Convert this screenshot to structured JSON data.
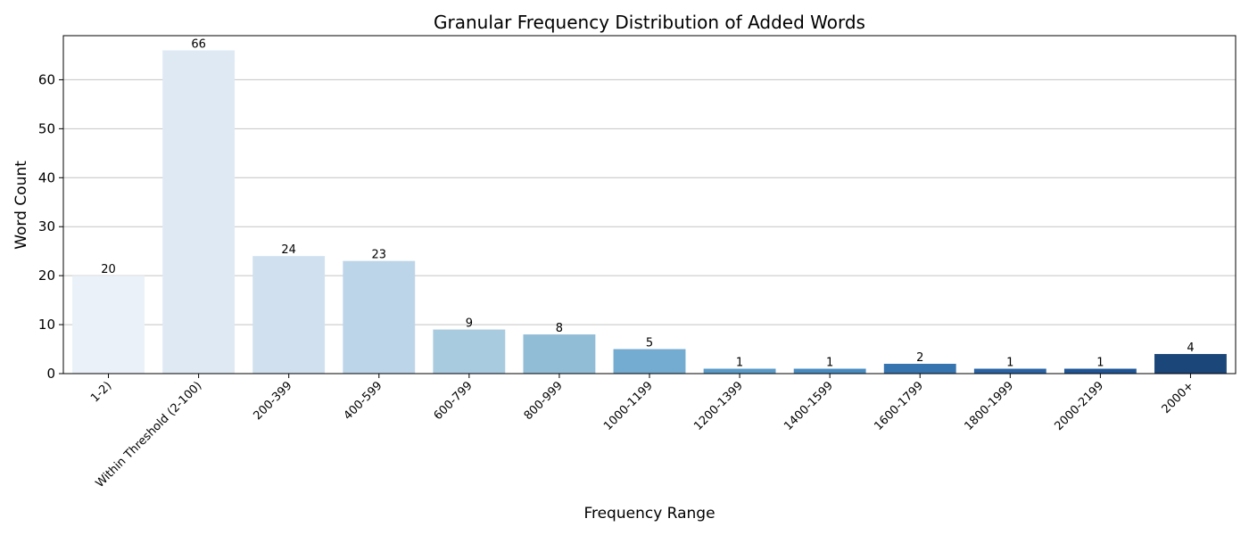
{
  "chart_data": {
    "type": "bar",
    "title": "Granular Frequency Distribution of Added Words",
    "xlabel": "Frequency Range",
    "ylabel": "Word Count",
    "categories": [
      "1-2)",
      "Within Threshold (2-100)",
      "200-399",
      "400-599",
      "600-799",
      "800-999",
      "1000-1199",
      "1200-1399",
      "1400-1599",
      "1600-1799",
      "1800-1999",
      "2000-2199",
      "2000+"
    ],
    "values": [
      20,
      66,
      24,
      23,
      9,
      8,
      5,
      1,
      1,
      2,
      1,
      1,
      4
    ],
    "ylim": [
      0,
      69
    ],
    "yticks": [
      0,
      10,
      20,
      30,
      40,
      50,
      60
    ],
    "grid": "horizontal",
    "colors": [
      "#eaf1f8",
      "#dfe9f4",
      "#d0e0ef",
      "#bdd5e8",
      "#a9cbe0",
      "#92bdd7",
      "#74abd0",
      "#5a9ac8",
      "#488bc0",
      "#3674b0",
      "#2963a5",
      "#1f5596",
      "#1b4679"
    ]
  }
}
